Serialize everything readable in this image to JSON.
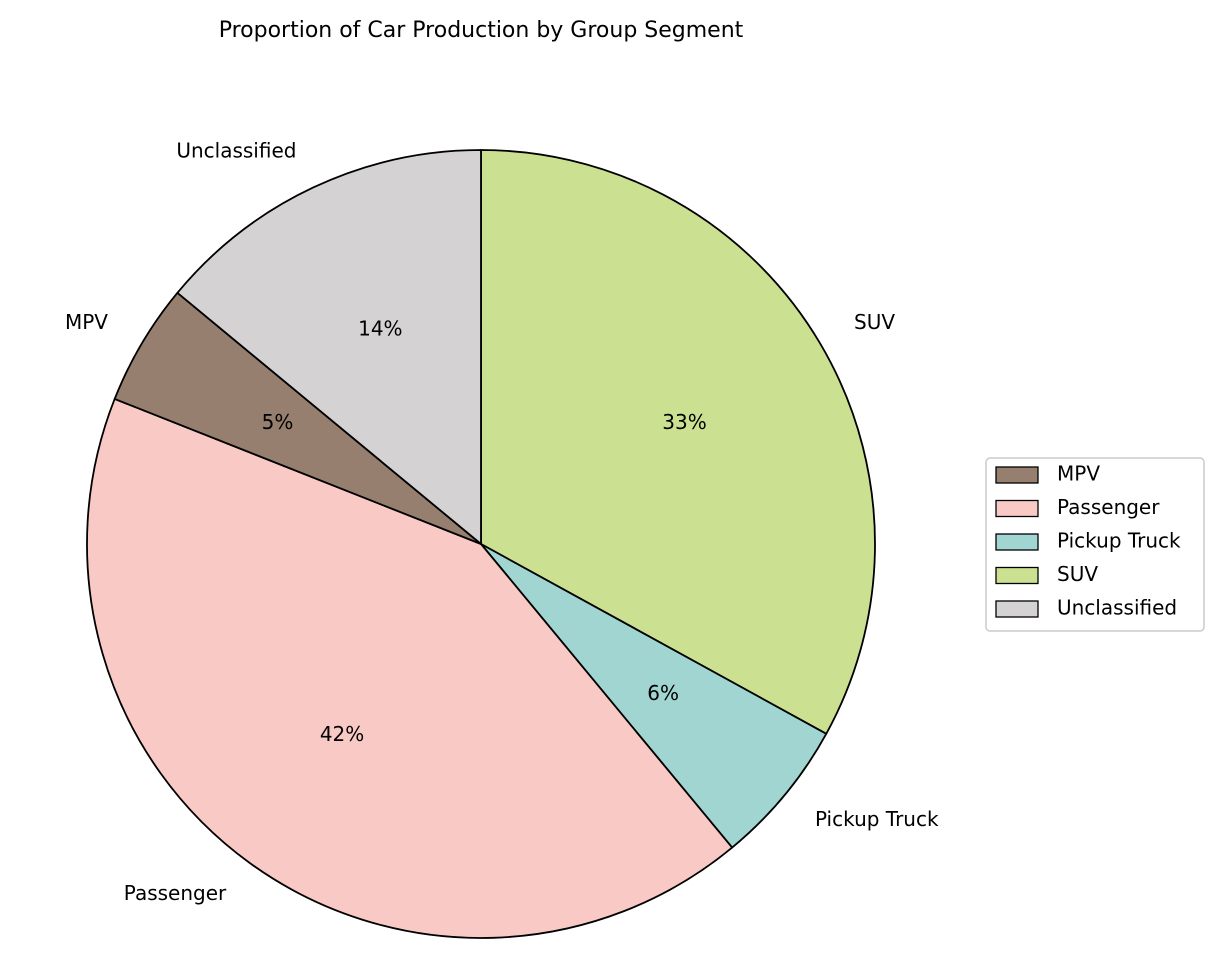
{
  "chart_data": {
    "type": "pie",
    "title": "Proportion of Car Production by Group Segment",
    "categories": [
      "SUV",
      "Pickup Truck",
      "Passenger",
      "MPV",
      "Unclassified"
    ],
    "values": [
      33,
      6,
      42,
      5,
      14
    ],
    "percent_labels": [
      "33%",
      "6%",
      "42%",
      "5%",
      "14%"
    ],
    "colors": [
      "#cce091",
      "#a1d5d1",
      "#f9c9c5",
      "#967f6f",
      "#d4d2d3"
    ],
    "start_angle_deg": 90,
    "direction": "clockwise",
    "legend": {
      "placement": "center-right",
      "entries": [
        {
          "label": "MPV",
          "color": "#967f6f"
        },
        {
          "label": "Passenger",
          "color": "#f9c9c5"
        },
        {
          "label": "Pickup Truck",
          "color": "#a1d5d1"
        },
        {
          "label": "SUV",
          "color": "#cce091"
        },
        {
          "label": "Unclassified",
          "color": "#d4d2d3"
        }
      ]
    }
  }
}
